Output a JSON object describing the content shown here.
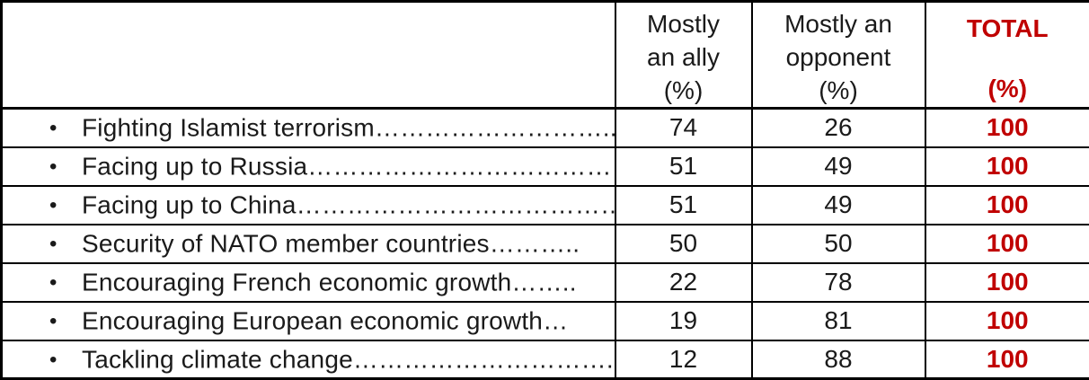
{
  "colors": {
    "accent_red": "#C00000",
    "text": "#1a1a1a",
    "border": "#000000"
  },
  "table": {
    "bullet": "•",
    "header": {
      "ally_lines": [
        "Mostly",
        "an ally",
        "(%)"
      ],
      "opponent_lines": [
        "Mostly an",
        "opponent",
        "(%)"
      ],
      "total_top": "TOTAL",
      "total_bottom": "(%)"
    },
    "rows": [
      {
        "label": "Fighting Islamist terrorism………………………..",
        "ally": "74",
        "opponent": "26",
        "total": "100"
      },
      {
        "label": "Facing up to Russia…………………………………..",
        "ally": "51",
        "opponent": "49",
        "total": "100"
      },
      {
        "label": "Facing up to China……………………………………",
        "ally": "51",
        "opponent": "49",
        "total": "100"
      },
      {
        "label": "Security of NATO member countries………..",
        "ally": "50",
        "opponent": "50",
        "total": "100"
      },
      {
        "label": "Encouraging French economic growth……..",
        "ally": "22",
        "opponent": "78",
        "total": "100"
      },
      {
        "label": "Encouraging European economic growth…",
        "ally": "19",
        "opponent": "81",
        "total": "100"
      },
      {
        "label": "Tackling climate change…………………………..",
        "ally": "12",
        "opponent": "88",
        "total": "100"
      }
    ]
  }
}
